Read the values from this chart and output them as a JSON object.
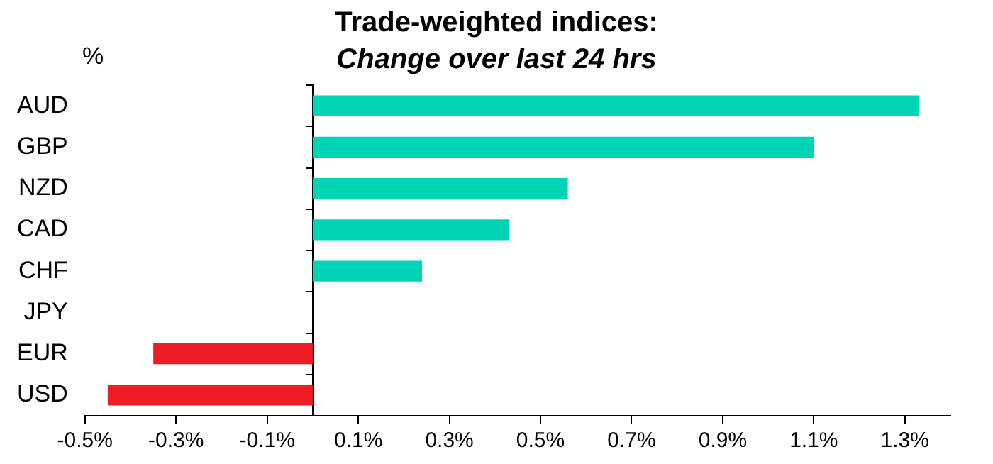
{
  "chart_data": {
    "type": "bar",
    "orientation": "horizontal",
    "title": "Trade-weighted indices:",
    "subtitle": "Change over last 24 hrs",
    "ylabel": "%",
    "categories": [
      "AUD",
      "GBP",
      "NZD",
      "CAD",
      "CHF",
      "JPY",
      "EUR",
      "USD"
    ],
    "values": [
      1.33,
      1.1,
      0.56,
      0.43,
      0.24,
      0,
      -0.35,
      -0.45
    ],
    "colors": [
      "#00d4b4",
      "#00d4b4",
      "#00d4b4",
      "#00d4b4",
      "#00d4b4",
      "#00d4b4",
      "#ee1c25",
      "#ee1c25"
    ],
    "xlim": [
      -0.5,
      1.4
    ],
    "xticks": [
      {
        "value": -0.5,
        "label": "-0.5%"
      },
      {
        "value": -0.3,
        "label": "-0.3%"
      },
      {
        "value": -0.1,
        "label": "-0.1%"
      },
      {
        "value": 0.1,
        "label": "0.1%"
      },
      {
        "value": 0.3,
        "label": "0.3%"
      },
      {
        "value": 0.5,
        "label": "0.5%"
      },
      {
        "value": 0.7,
        "label": "0.7%"
      },
      {
        "value": 0.9,
        "label": "0.9%"
      },
      {
        "value": 1.1,
        "label": "1.1%"
      },
      {
        "value": 1.3,
        "label": "1.3%"
      }
    ],
    "grid": false,
    "legend": false
  }
}
